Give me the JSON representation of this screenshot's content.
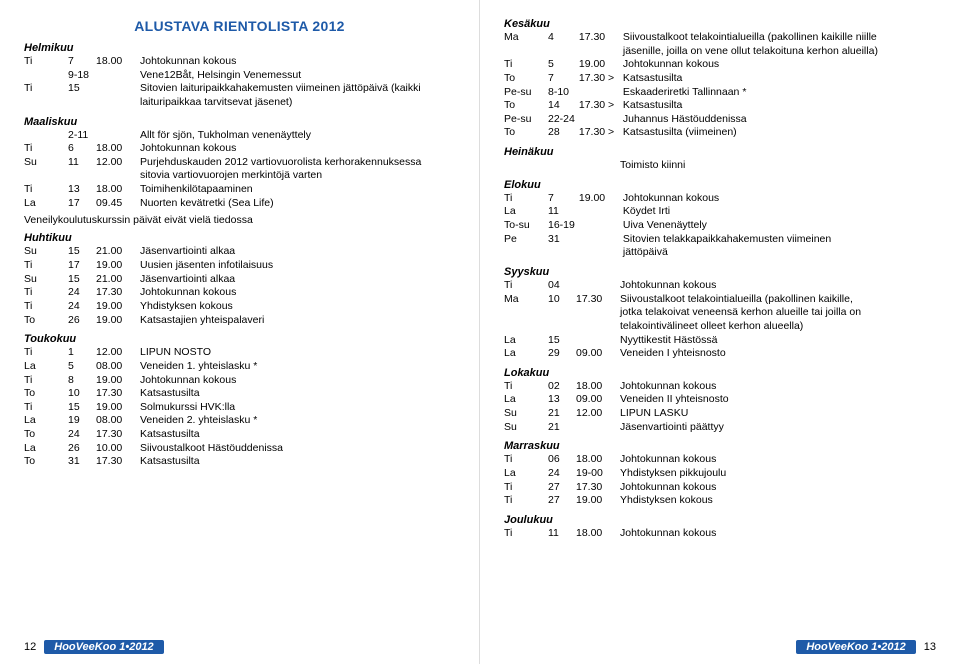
{
  "title": "ALUSTAVA RIENTOLISTA 2012",
  "publication": "HooVeeKoo 1•2012",
  "page_left_num": "12",
  "page_right_num": "13",
  "note_left": "Veneilykoulutuskurssin päivät eivät vielä tiedossa",
  "left": [
    {
      "month": "Helmikuu",
      "rows": [
        {
          "day": "Ti",
          "num": "7",
          "time": "18.00",
          "desc": "Johtokunnan kokous"
        }
      ]
    },
    {
      "rows": [
        {
          "day": "",
          "num": "9-18",
          "time": "",
          "desc": "Vene12Båt, Helsingin Venemessut"
        },
        {
          "day": "Ti",
          "num": "15",
          "time": "",
          "desc": "Sitovien laituripaikkahakemusten viimeinen jättöpäivä (kaikki laituripaikkaa tarvitsevat jäsenet)"
        }
      ]
    },
    {
      "month": "Maaliskuu",
      "rows": [
        {
          "day": "",
          "num": "2-11",
          "time": "",
          "desc": "Allt för sjön, Tukholman venenäyttely"
        },
        {
          "day": "Ti",
          "num": "6",
          "time": "18.00",
          "desc": "Johtokunnan kokous"
        },
        {
          "day": "Su",
          "num": "11",
          "time": "12.00",
          "desc": "Purjehduskauden 2012 vartiovuorolista kerhorakennuksessa sitovia vartiovuorojen merkintöjä varten"
        },
        {
          "day": "Ti",
          "num": "13",
          "time": "18.00",
          "desc": "Toimihenkilötapaaminen"
        },
        {
          "day": "La",
          "num": "17",
          "time": "09.45",
          "desc": "Nuorten kevätretki (Sea Life)"
        }
      ]
    },
    {
      "month": "Huhtikuu",
      "rows": [
        {
          "day": "Su",
          "num": "15",
          "time": "21.00",
          "desc": "Jäsenvartiointi alkaa"
        },
        {
          "day": "Ti",
          "num": "17",
          "time": "19.00",
          "desc": "Uusien jäsenten infotilaisuus"
        },
        {
          "day": "Su",
          "num": "15",
          "time": "21.00",
          "desc": "Jäsenvartiointi alkaa"
        },
        {
          "day": "Ti",
          "num": "24",
          "time": "17.30",
          "desc": "Johtokunnan kokous"
        },
        {
          "day": "Ti",
          "num": "24",
          "time": "19.00",
          "desc": "Yhdistyksen kokous"
        },
        {
          "day": "To",
          "num": "26",
          "time": "19.00",
          "desc": "Katsastajien yhteispalaveri"
        }
      ]
    },
    {
      "month": "Toukokuu",
      "rows": [
        {
          "day": "Ti",
          "num": "1",
          "time": "12.00",
          "desc": "LIPUN NOSTO"
        },
        {
          "day": "La",
          "num": "5",
          "time": "08.00",
          "desc": "Veneiden 1. yhteislasku *"
        },
        {
          "day": "Ti",
          "num": "8",
          "time": "19.00",
          "desc": "Johtokunnan kokous"
        },
        {
          "day": "To",
          "num": "10",
          "time": "17.30",
          "desc": "Katsastusilta"
        },
        {
          "day": "Ti",
          "num": "15",
          "time": "19.00",
          "desc": "Solmukurssi HVK:lla"
        },
        {
          "day": "La",
          "num": "19",
          "time": "08.00",
          "desc": "Veneiden 2. yhteislasku *"
        },
        {
          "day": "To",
          "num": "24",
          "time": "17.30",
          "desc": "Katsastusilta"
        },
        {
          "day": "La",
          "num": "26",
          "time": "10.00",
          "desc": "Siivoustalkoot Hästöuddenissa"
        },
        {
          "day": "To",
          "num": "31",
          "time": "17.30",
          "desc": "Katsastusilta"
        }
      ]
    }
  ],
  "right": [
    {
      "month": "Kesäkuu",
      "rows": [
        {
          "day": "Ma",
          "num": "4",
          "time": "17.30",
          "desc": "Siivoustalkoot telakointialueilla (pakollinen kaikille niille jäsenille, joilla on vene ollut telakoituna kerhon alueilla)"
        },
        {
          "day": "Ti",
          "num": "5",
          "time": "19.00",
          "desc": "Johtokunnan kokous"
        },
        {
          "day": "To",
          "num": "7",
          "time": "17.30 >",
          "desc": "Katsastusilta"
        },
        {
          "day": "Pe-su",
          "num": "8-10",
          "time": "",
          "desc": "Eskaaderiretki Tallinnaan *"
        },
        {
          "day": "To",
          "num": "14",
          "time": "17.30 >",
          "desc": "Katsastusilta"
        },
        {
          "day": "Pe-su",
          "num": "22-24",
          "time": "",
          "desc": "Juhannus Hästöuddenissa"
        },
        {
          "day": "To",
          "num": "28",
          "time": "17.30 >",
          "desc": "Katsastusilta (viimeinen)"
        }
      ]
    },
    {
      "month": "Heinäkuu",
      "rows": [
        {
          "day": "",
          "num": "",
          "time": "",
          "desc": "Toimisto kiinni"
        }
      ]
    },
    {
      "month": "Elokuu",
      "rows": [
        {
          "day": "Ti",
          "num": "7",
          "time": "19.00",
          "desc": "Johtokunnan kokous"
        },
        {
          "day": "La",
          "num": "11",
          "time": "",
          "desc": "Köydet Irti"
        },
        {
          "day": "To-su",
          "num": "16-19",
          "time": "",
          "desc": "Uiva Venenäyttely"
        },
        {
          "day": "Pe",
          "num": "31",
          "time": "",
          "desc": "Sitovien telakkapaikkahakemusten viimeinen jättöpäivä"
        }
      ]
    },
    {
      "month": "Syyskuu",
      "rows": [
        {
          "day": "Ti",
          "num": "04",
          "time": "",
          "desc": "Johtokunnan kokous"
        },
        {
          "day": "Ma",
          "num": "10",
          "time": "17.30",
          "desc": "Siivoustalkoot telakointialueilla (pakollinen kaikille, jotka telakoivat veneensä kerhon alueille tai joilla on telakointivälineet olleet kerhon alueella)"
        },
        {
          "day": "La",
          "num": "15",
          "time": "",
          "desc": "Nyyttikestit Hästössä"
        },
        {
          "day": "La",
          "num": "29",
          "time": "09.00",
          "desc": "Veneiden I yhteisnosto"
        }
      ]
    },
    {
      "month": "Lokakuu",
      "rows": [
        {
          "day": "Ti",
          "num": "02",
          "time": "18.00",
          "desc": "Johtokunnan kokous"
        },
        {
          "day": "La",
          "num": "13",
          "time": "09.00",
          "desc": "Veneiden II yhteisnosto"
        },
        {
          "day": "Su",
          "num": "21",
          "time": "12.00",
          "desc": "LIPUN LASKU"
        },
        {
          "day": "Su",
          "num": "21",
          "time": "",
          "desc": "Jäsenvartiointi päättyy"
        }
      ]
    },
    {
      "month": "Marraskuu",
      "rows": [
        {
          "day": "Ti",
          "num": "06",
          "time": "18.00",
          "desc": "Johtokunnan kokous"
        },
        {
          "day": "La",
          "num": "24",
          "time": "19-00",
          "desc": "Yhdistyksen pikkujoulu"
        },
        {
          "day": "Ti",
          "num": "27",
          "time": "17.30",
          "desc": "Johtokunnan kokous"
        },
        {
          "day": "Ti",
          "num": "27",
          "time": "19.00",
          "desc": "Yhdistyksen kokous"
        }
      ]
    },
    {
      "month": "Joulukuu",
      "rows": [
        {
          "day": "Ti",
          "num": "11",
          "time": "18.00",
          "desc": "Johtokunnan kokous"
        }
      ]
    }
  ]
}
